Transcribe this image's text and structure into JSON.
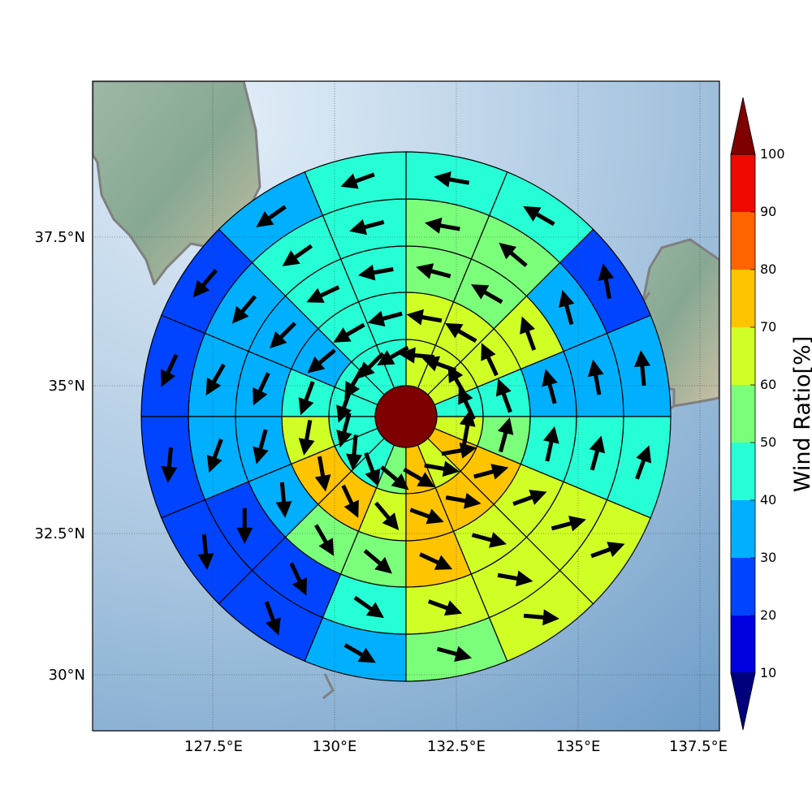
{
  "map": {
    "lon_labels": [
      "127.5°E",
      "130°E",
      "132.5°E",
      "135°E",
      "137.5°E"
    ],
    "lat_labels": [
      "37.5°N",
      "35°N",
      "32.5°N",
      "30°N"
    ],
    "lon_ticks": [
      127.5,
      130,
      132.5,
      135,
      137.5
    ],
    "lat_ticks": [
      37.5,
      35,
      32.5,
      30
    ],
    "extent": {
      "lon_min": 125.0,
      "lon_max": 138.0,
      "lat_min": 29.0,
      "lat_max": 39.8
    },
    "grid": true,
    "colors": {
      "ocean_light": "#d6e6f4",
      "ocean_dark": "#6d9cc7",
      "land": "#8fae9a",
      "coast": "#808080"
    }
  },
  "colorbar": {
    "title": "Wind Ratio[%]",
    "tick_labels": [
      "10",
      "20",
      "30",
      "40",
      "50",
      "60",
      "70",
      "80",
      "90",
      "100"
    ],
    "bins": [
      {
        "min": 0,
        "max": 10,
        "color": "#00007f"
      },
      {
        "min": 10,
        "max": 20,
        "color": "#0000e0"
      },
      {
        "min": 20,
        "max": 30,
        "color": "#0044ff"
      },
      {
        "min": 30,
        "max": 40,
        "color": "#00b0ff"
      },
      {
        "min": 40,
        "max": 50,
        "color": "#26ffd6"
      },
      {
        "min": 50,
        "max": 60,
        "color": "#7bff7b"
      },
      {
        "min": 60,
        "max": 70,
        "color": "#d0ff26"
      },
      {
        "min": 70,
        "max": 80,
        "color": "#ffc400"
      },
      {
        "min": 80,
        "max": 90,
        "color": "#ff6400"
      },
      {
        "min": 90,
        "max": 100,
        "color": "#ee0a00"
      },
      {
        "min": 100,
        "max": 110,
        "color": "#7f0000"
      }
    ]
  },
  "chart_data": {
    "type": "heatmap",
    "title": "",
    "description_value": "wind ratio per polar sector",
    "center_value": 100,
    "rings": 5,
    "sectors": 16,
    "units": "%",
    "values": [
      [
        45,
        65,
        65,
        65,
        45,
        45,
        45,
        45,
        45,
        45,
        45,
        55,
        75,
        65,
        75,
        65
      ],
      [
        45,
        65,
        65,
        65,
        45,
        45,
        35,
        45,
        65,
        75,
        75,
        65,
        75,
        75,
        75,
        55
      ],
      [
        35,
        65,
        55,
        55,
        45,
        45,
        35,
        35,
        35,
        35,
        55,
        55,
        75,
        65,
        65,
        45
      ],
      [
        35,
        35,
        55,
        55,
        45,
        45,
        35,
        35,
        35,
        25,
        25,
        45,
        65,
        65,
        65,
        45
      ],
      [
        35,
        25,
        45,
        45,
        45,
        35,
        25,
        25,
        25,
        25,
        25,
        35,
        55,
        65,
        65,
        45
      ]
    ],
    "arrow_directions_deg": [
      [
        115,
        120,
        160,
        175,
        210,
        225,
        240,
        250,
        255,
        265,
        290,
        320,
        330,
        350,
        10,
        80
      ],
      [
        110,
        115,
        150,
        170,
        195,
        210,
        220,
        250,
        260,
        280,
        295,
        310,
        340,
        350,
        15,
        75
      ],
      [
        105,
        110,
        150,
        165,
        190,
        205,
        225,
        245,
        255,
        275,
        300,
        320,
        335,
        345,
        20,
        78
      ],
      [
        100,
        105,
        140,
        170,
        195,
        215,
        230,
        240,
        250,
        270,
        295,
        325,
        340,
        350,
        15,
        75
      ],
      [
        95,
        100,
        150,
        170,
        200,
        215,
        230,
        245,
        265,
        275,
        290,
        330,
        345,
        355,
        20,
        70
      ]
    ]
  }
}
